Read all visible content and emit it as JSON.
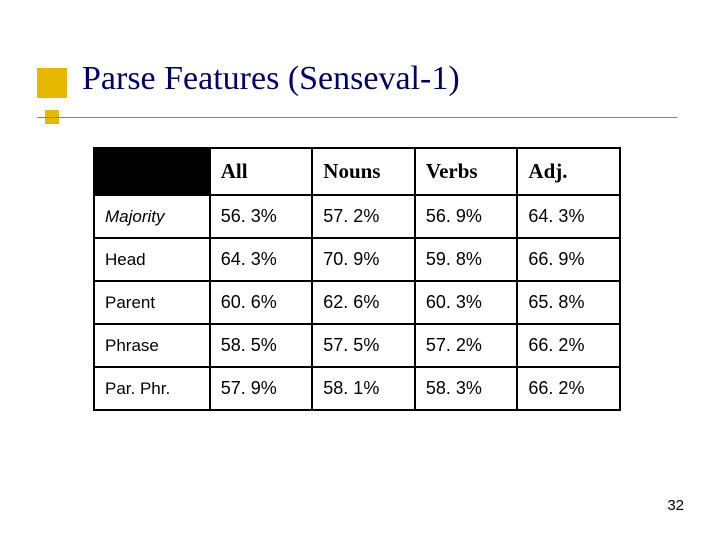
{
  "title": "Parse Features (Senseval-1)",
  "page_number": "32",
  "accent_color": "#e6b800",
  "title_color": "#000066",
  "table": {
    "columns": [
      "",
      "All",
      "Nouns",
      "Verbs",
      "Adj."
    ],
    "rows": [
      {
        "label": "Majority",
        "italic": true,
        "cells": [
          "56. 3%",
          "57. 2%",
          "56. 9%",
          "64. 3%"
        ]
      },
      {
        "label": "Head",
        "italic": false,
        "cells": [
          "64. 3%",
          "70. 9%",
          "59. 8%",
          "66. 9%"
        ]
      },
      {
        "label": "Parent",
        "italic": false,
        "cells": [
          "60. 6%",
          "62. 6%",
          "60. 3%",
          "65. 8%"
        ]
      },
      {
        "label": "Phrase",
        "italic": false,
        "cells": [
          "58. 5%",
          "57. 5%",
          "57. 2%",
          "66. 2%"
        ]
      },
      {
        "label": "Par. Phr.",
        "italic": false,
        "cells": [
          "57. 9%",
          "58. 1%",
          "58. 3%",
          "66. 2%"
        ]
      }
    ]
  }
}
